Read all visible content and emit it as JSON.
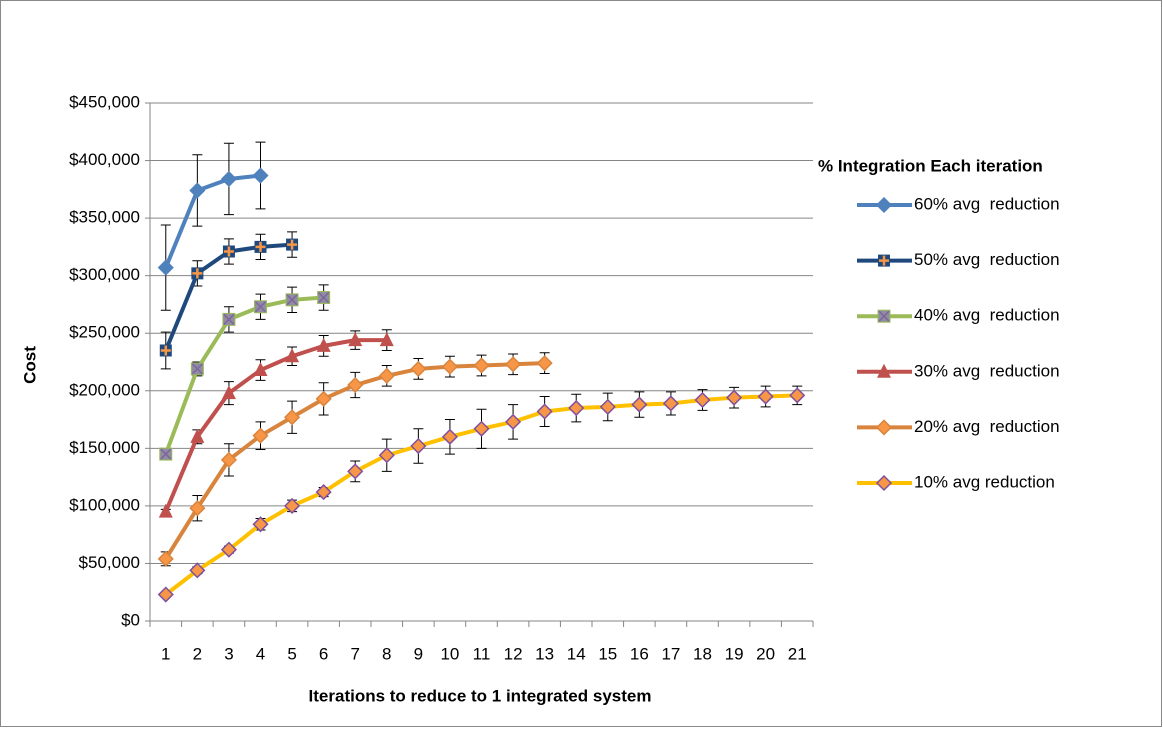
{
  "chart_data": {
    "type": "line",
    "y_label": "Cost",
    "x_label": "Iterations to reduce to 1 integrated system",
    "legend_title": "% Integration Each iteration",
    "legend_position": "right",
    "grid": true,
    "categories": [
      "1",
      "2",
      "3",
      "4",
      "5",
      "6",
      "7",
      "8",
      "9",
      "10",
      "11",
      "12",
      "13",
      "14",
      "15",
      "16",
      "17",
      "18",
      "19",
      "20",
      "21"
    ],
    "ylim": [
      0,
      450000
    ],
    "yticks": [
      {
        "value": 0,
        "label": "$0"
      },
      {
        "value": 50000,
        "label": "$50,000"
      },
      {
        "value": 100000,
        "label": "$100,000"
      },
      {
        "value": 150000,
        "label": "$150,000"
      },
      {
        "value": 200000,
        "label": "$200,000"
      },
      {
        "value": 250000,
        "label": "$250,000"
      },
      {
        "value": 300000,
        "label": "$300,000"
      },
      {
        "value": 350000,
        "label": "$350,000"
      },
      {
        "value": 400000,
        "label": "$400,000"
      },
      {
        "value": 450000,
        "label": "$450,000"
      }
    ],
    "series": [
      {
        "name": "60% avg  reduction",
        "color": "#4f81bd",
        "marker": "diamond",
        "marker_color": "#4f81bd",
        "values": [
          307000,
          374000,
          384000,
          387000,
          null,
          null,
          null,
          null,
          null,
          null,
          null,
          null,
          null,
          null,
          null,
          null,
          null,
          null,
          null,
          null,
          null
        ],
        "errors": [
          37000,
          31000,
          31000,
          29000,
          null,
          null,
          null,
          null,
          null,
          null,
          null,
          null,
          null,
          null,
          null,
          null,
          null,
          null,
          null,
          null,
          null
        ]
      },
      {
        "name": "50% avg  reduction",
        "color": "#1f497d",
        "marker": "square-plus",
        "marker_color": "#f79646",
        "values": [
          235000,
          302000,
          321000,
          325000,
          327000,
          null,
          null,
          null,
          null,
          null,
          null,
          null,
          null,
          null,
          null,
          null,
          null,
          null,
          null,
          null,
          null
        ],
        "errors": [
          16000,
          11000,
          11000,
          11000,
          11000,
          null,
          null,
          null,
          null,
          null,
          null,
          null,
          null,
          null,
          null,
          null,
          null,
          null,
          null,
          null,
          null
        ]
      },
      {
        "name": "40% avg  reduction",
        "color": "#9bbb59",
        "marker": "x-box",
        "marker_color": "#8064a2",
        "values": [
          145000,
          219000,
          262000,
          273000,
          279000,
          281000,
          null,
          null,
          null,
          null,
          null,
          null,
          null,
          null,
          null,
          null,
          null,
          null,
          null,
          null,
          null
        ],
        "errors": [
          2000,
          6000,
          11000,
          11000,
          11000,
          11000,
          null,
          null,
          null,
          null,
          null,
          null,
          null,
          null,
          null,
          null,
          null,
          null,
          null,
          null,
          null
        ]
      },
      {
        "name": "30% avg  reduction",
        "color": "#c0504d",
        "marker": "triangle",
        "marker_color": "#c0504d",
        "values": [
          95000,
          160000,
          198000,
          218000,
          230000,
          239000,
          244000,
          244000,
          null,
          null,
          null,
          null,
          null,
          null,
          null,
          null,
          null,
          null,
          null,
          null,
          null
        ],
        "errors": [
          2000,
          6000,
          10000,
          9000,
          8000,
          9000,
          8000,
          9000,
          null,
          null,
          null,
          null,
          null,
          null,
          null,
          null,
          null,
          null,
          null,
          null,
          null
        ]
      },
      {
        "name": "20% avg  reduction",
        "color": "#d9843d",
        "marker": "diamond",
        "marker_color": "#f79646",
        "values": [
          54000,
          98000,
          140000,
          161000,
          177000,
          193000,
          205000,
          213000,
          219000,
          221000,
          222000,
          223000,
          224000,
          null,
          null,
          null,
          null,
          null,
          null,
          null,
          null
        ],
        "errors": [
          6000,
          11000,
          14000,
          12000,
          14000,
          14000,
          11000,
          9000,
          9000,
          9000,
          9000,
          9000,
          9000,
          null,
          null,
          null,
          null,
          null,
          null,
          null,
          null
        ]
      },
      {
        "name": "10% avg reduction",
        "color": "#ffc000",
        "marker": "diamond",
        "marker_color": "#f79646",
        "values": [
          23000,
          44000,
          62000,
          84000,
          100000,
          112000,
          130000,
          144000,
          152000,
          160000,
          167000,
          173000,
          182000,
          185000,
          186000,
          188000,
          189000,
          192000,
          194000,
          195000,
          196000
        ],
        "errors": [
          2000,
          3000,
          3000,
          5000,
          5000,
          4000,
          9000,
          14000,
          15000,
          15000,
          17000,
          15000,
          13000,
          12000,
          12000,
          11000,
          10000,
          9000,
          9000,
          9000,
          8000
        ]
      }
    ]
  }
}
